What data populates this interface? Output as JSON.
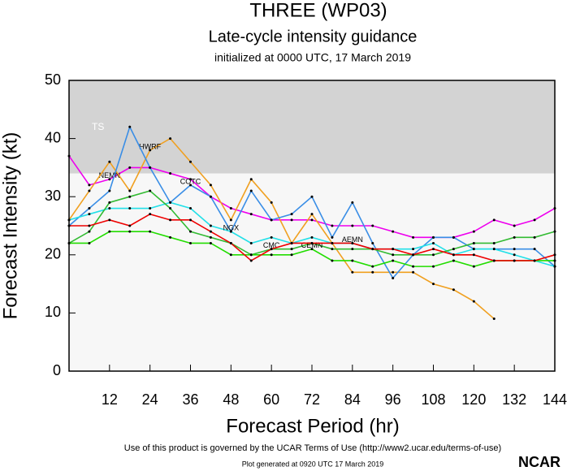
{
  "chart_data": {
    "type": "line",
    "title": "THREE (WP03)",
    "subtitle": "Late-cycle intensity guidance",
    "caption": "initialized at 0000 UTC, 17 March 2019",
    "x_label": "Forecast Period (hr)",
    "y_label": "Forecast Intensity (kt)",
    "xlim": [
      0,
      144
    ],
    "ylim": [
      0,
      50
    ],
    "xticks": [
      12,
      24,
      36,
      48,
      60,
      72,
      84,
      96,
      108,
      120,
      132,
      144
    ],
    "yticks": [
      0,
      10,
      20,
      30,
      40,
      50
    ],
    "shade": {
      "label": "TS",
      "from": 34,
      "to": 50,
      "color": "#d3d3d3"
    },
    "background": "#f7f7f7",
    "x": [
      0,
      6,
      12,
      18,
      24,
      30,
      36,
      42,
      48,
      54,
      60,
      66,
      72,
      78,
      84,
      90,
      96,
      102,
      108,
      114,
      120,
      126,
      132,
      138,
      144
    ],
    "series": [
      {
        "name": "NEMN",
        "color": "#ee00ee",
        "values": [
          37,
          32,
          33,
          35,
          35,
          34,
          33,
          30,
          28,
          27,
          26,
          26,
          26,
          25,
          25,
          25,
          24,
          23,
          23,
          23,
          24,
          26,
          25,
          26,
          28
        ]
      },
      {
        "name": "HWRF",
        "color": "#f0a020",
        "values": [
          26,
          31,
          36,
          31,
          38,
          40,
          36,
          32,
          26,
          33,
          29,
          22,
          27,
          22,
          17,
          17,
          17,
          17,
          15,
          14,
          12,
          9,
          null,
          null,
          null
        ]
      },
      {
        "name": "COTC",
        "color": "#3a8ee6",
        "values": [
          25,
          28,
          31,
          42,
          35,
          29,
          32,
          30,
          24,
          31,
          26,
          27,
          30,
          23,
          29,
          22,
          16,
          20,
          23,
          23,
          21,
          21,
          21,
          21,
          18
        ]
      },
      {
        "name": "NGX",
        "color": "#22e0e8",
        "values": [
          26,
          27,
          28,
          28,
          28,
          29,
          28,
          25,
          24,
          22,
          23,
          22,
          23,
          22,
          22,
          21,
          21,
          21,
          22,
          20,
          21,
          21,
          20,
          19,
          18
        ]
      },
      {
        "name": "CMC",
        "color": "#33bb33",
        "values": [
          22,
          24,
          29,
          30,
          31,
          28,
          24,
          23,
          22,
          20,
          21,
          21,
          22,
          21,
          21,
          21,
          20,
          20,
          20,
          21,
          22,
          22,
          23,
          23,
          24
        ]
      },
      {
        "name": "CEMN",
        "color": "#22dd00",
        "values": [
          22,
          22,
          24,
          24,
          24,
          23,
          22,
          22,
          20,
          20,
          20,
          20,
          21,
          19,
          19,
          18,
          19,
          18,
          18,
          19,
          18,
          19,
          19,
          19,
          19
        ]
      },
      {
        "name": "AEMN",
        "color": "#ee0000",
        "values": [
          25,
          25,
          26,
          25,
          27,
          26,
          26,
          24,
          22,
          19,
          21,
          22,
          22,
          22,
          22,
          21,
          21,
          20,
          21,
          20,
          20,
          19,
          19,
          19,
          20
        ]
      }
    ],
    "footer": "Use of this product is governed by the UCAR Terms of Use (http://www2.ucar.edu/terms-of-use)",
    "generated": "Plot generated at 0920 UTC   17 March 2019",
    "logo": "NCAR"
  }
}
